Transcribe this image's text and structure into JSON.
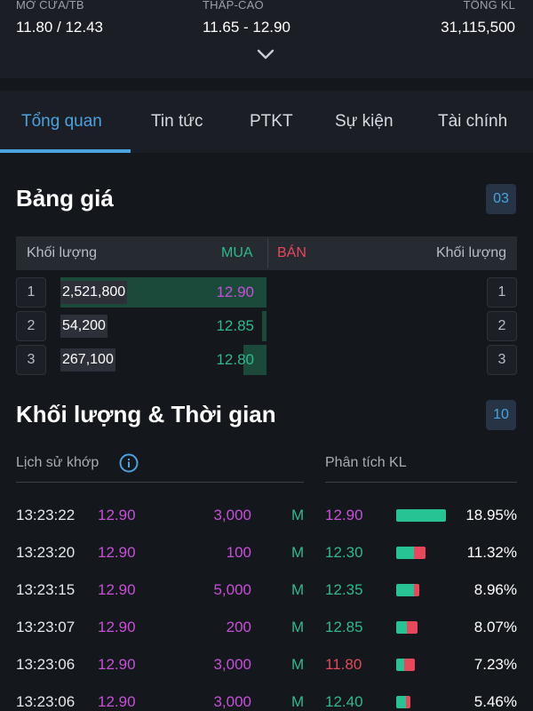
{
  "header": {
    "open_avg": {
      "label": "MỞ CỬA/TB",
      "value": "11.80 / 12.43"
    },
    "low_high": {
      "label": "THẤP-CAO",
      "value": "11.65 - 12.90"
    },
    "total_volume": {
      "label": "TỔNG KL",
      "value": "31,115,500"
    },
    "expand_icon": "chevron-down-icon"
  },
  "tabs": [
    {
      "label": "Tổng quan",
      "active": true
    },
    {
      "label": "Tin tức",
      "active": false
    },
    {
      "label": "PTKT",
      "active": false
    },
    {
      "label": "Sự kiện",
      "active": false
    },
    {
      "label": "Tài chính",
      "active": false
    }
  ],
  "order_book": {
    "title": "Bảng giá",
    "depth_badge": "03",
    "header": {
      "bid_volume": "Khối lượng",
      "buy": "MUA",
      "sell": "BÁN",
      "ask_volume": "Khối lượng"
    },
    "bids": [
      {
        "index": "1",
        "volume": "2,521,800",
        "price": "12.90",
        "price_color": "#c84fd8",
        "fill": 1.0
      },
      {
        "index": "2",
        "volume": "54,200",
        "price": "12.85",
        "price_color": "#2fb98e",
        "fill": 0.02
      },
      {
        "index": "3",
        "volume": "267,100",
        "price": "12.80",
        "price_color": "#2fb98e",
        "fill": 0.11
      }
    ],
    "asks": [
      {
        "index": "1"
      },
      {
        "index": "2"
      },
      {
        "index": "3"
      }
    ]
  },
  "trades_section": {
    "title": "Khối lượng & Thời gian",
    "count_badge": "10",
    "history_label": "Lịch sử khớp",
    "info_icon": "info-circle-icon",
    "analysis_label": "Phân tích KL",
    "rows": [
      {
        "time": "13:23:22",
        "price": "12.90",
        "volume": "3,000",
        "side": "M",
        "analysis_price": "12.90",
        "analysis_color": "#c84fd8",
        "buy_share": 1.0,
        "sell_share": 0.0,
        "percent": "18.95%"
      },
      {
        "time": "13:23:20",
        "price": "12.90",
        "volume": "100",
        "side": "M",
        "analysis_price": "12.30",
        "analysis_color": "#2fb98e",
        "buy_share": 0.6,
        "sell_share": 0.4,
        "percent": "11.32%"
      },
      {
        "time": "13:23:15",
        "price": "12.90",
        "volume": "5,000",
        "side": "M",
        "analysis_price": "12.35",
        "analysis_color": "#2fb98e",
        "buy_share": 0.78,
        "sell_share": 0.22,
        "percent": "8.96%"
      },
      {
        "time": "13:23:07",
        "price": "12.90",
        "volume": "200",
        "side": "M",
        "analysis_price": "12.85",
        "analysis_color": "#2fb98e",
        "buy_share": 0.5,
        "sell_share": 0.5,
        "percent": "8.07%"
      },
      {
        "time": "13:23:06",
        "price": "12.90",
        "volume": "3,000",
        "side": "M",
        "analysis_price": "11.80",
        "analysis_color": "#e8475c",
        "buy_share": 0.45,
        "sell_share": 0.55,
        "percent": "7.23%"
      },
      {
        "time": "13:23:06",
        "price": "12.90",
        "volume": "3,000",
        "side": "M",
        "analysis_price": "12.40",
        "analysis_color": "#2fb98e",
        "buy_share": 0.7,
        "sell_share": 0.3,
        "percent": "5.46%"
      }
    ]
  },
  "colors": {
    "accent": "#4aa3df",
    "buy": "#2fb98e",
    "sell": "#e8475c",
    "ceiling": "#c84fd8"
  }
}
